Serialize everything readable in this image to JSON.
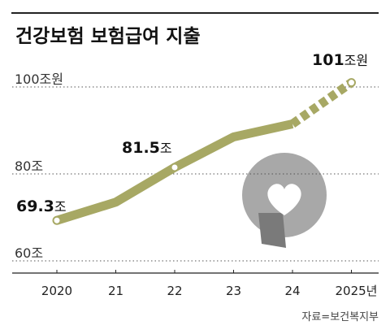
{
  "title": "건강보험 보험급여 지출",
  "source": "자료=보건복지부",
  "colors": {
    "line": "#a7a864",
    "logo": "#a8a8a8",
    "logo_dark": "#7a7a7a",
    "grid": "#555555",
    "rule": "#222222"
  },
  "chart_data": {
    "type": "line",
    "title": "건강보험 보험급여 지출",
    "x": [
      "2020",
      "21",
      "22",
      "23",
      "24",
      "2025년"
    ],
    "series": [
      {
        "values": [
          69.3,
          73.5,
          81.5,
          88.5,
          91.5,
          101
        ],
        "projected_from_index": 4
      }
    ],
    "y_ticks": [
      "60조",
      "80조",
      "100조원"
    ],
    "y_tick_values": [
      60,
      80,
      100
    ],
    "ylim": [
      60,
      100
    ],
    "grid": "dotted horizontal",
    "annotations": [
      {
        "index": 0,
        "value": "69.3",
        "unit": "조"
      },
      {
        "index": 2,
        "value": "81.5",
        "unit": "조"
      },
      {
        "index": 5,
        "value": "101",
        "unit": "조원"
      }
    ]
  }
}
